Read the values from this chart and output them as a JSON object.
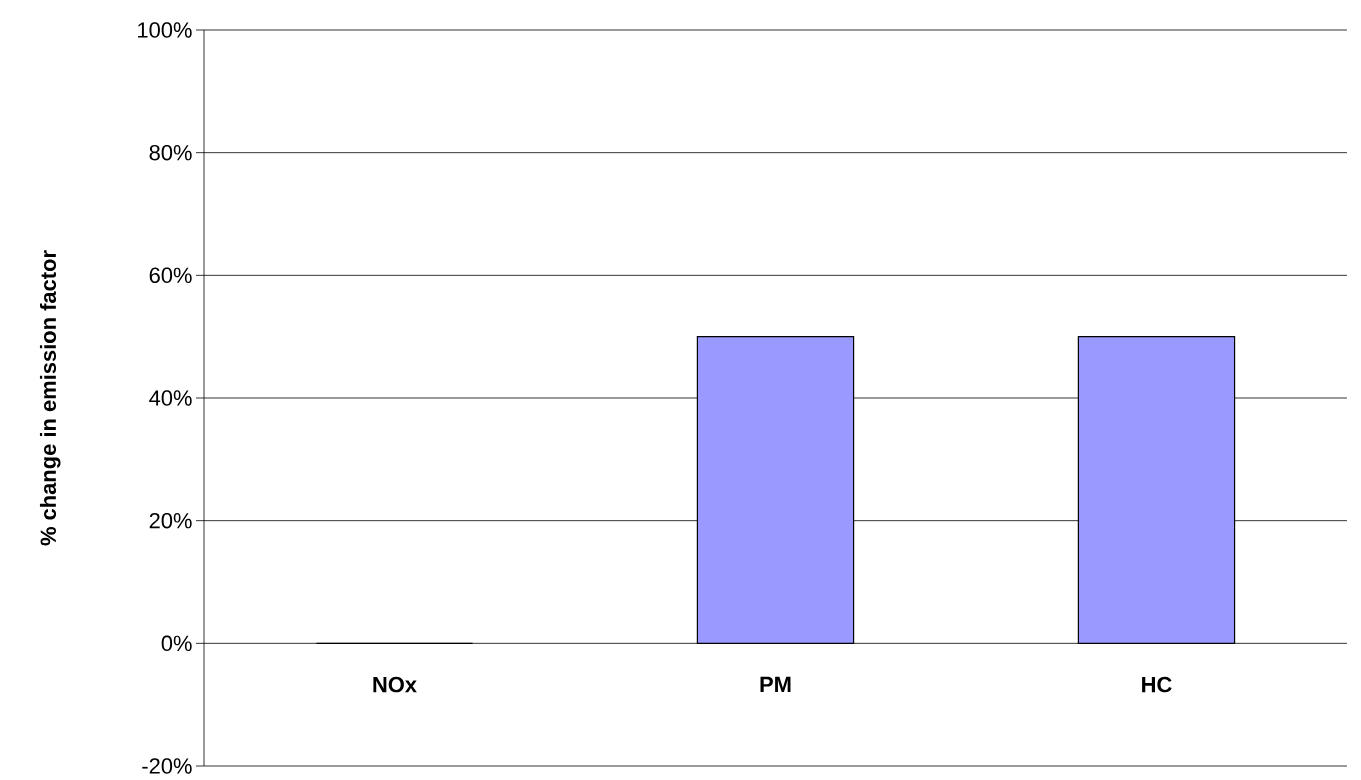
{
  "chart_data": {
    "type": "bar",
    "ylabel": "% change in emission factor",
    "categories": [
      "NOx",
      "PM",
      "HC"
    ],
    "values": [
      0,
      50,
      50
    ],
    "color": "#9999ff",
    "ylim": [
      -20,
      100
    ],
    "yticks": [
      {
        "value": -20,
        "label": "-20%"
      },
      {
        "value": 0,
        "label": "0%"
      },
      {
        "value": 20,
        "label": "20%"
      },
      {
        "value": 40,
        "label": "40%"
      },
      {
        "value": 60,
        "label": "60%"
      },
      {
        "value": 80,
        "label": "80%"
      },
      {
        "value": 100,
        "label": "100%"
      }
    ],
    "grid": "y"
  }
}
